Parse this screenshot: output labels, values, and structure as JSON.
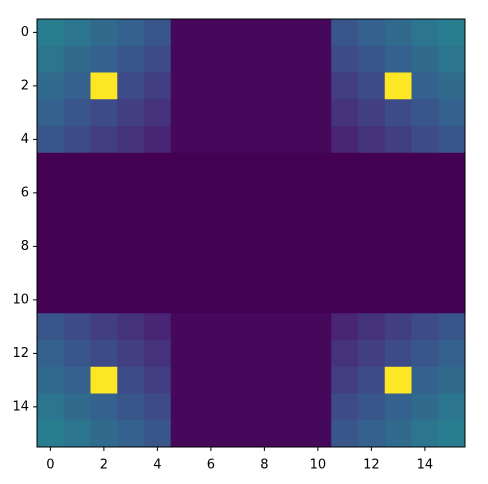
{
  "chart_data": {
    "type": "heatmap",
    "colormap": "viridis",
    "values": [
      [
        0.44,
        0.4,
        0.36,
        0.32,
        0.28,
        0.04,
        0.04,
        0.04,
        0.04,
        0.04,
        0.04,
        0.28,
        0.32,
        0.36,
        0.4,
        0.44
      ],
      [
        0.4,
        0.36,
        0.32,
        0.28,
        0.24,
        0.04,
        0.04,
        0.04,
        0.04,
        0.04,
        0.04,
        0.24,
        0.28,
        0.32,
        0.36,
        0.4
      ],
      [
        0.36,
        0.32,
        1,
        0.24,
        0.2,
        0.04,
        0.04,
        0.04,
        0.04,
        0.04,
        0.04,
        0.2,
        0.24,
        1,
        0.32,
        0.36
      ],
      [
        0.32,
        0.28,
        0.24,
        0.2,
        0.16,
        0.04,
        0.04,
        0.04,
        0.04,
        0.04,
        0.04,
        0.16,
        0.2,
        0.24,
        0.28,
        0.32
      ],
      [
        0.28,
        0.24,
        0.2,
        0.16,
        0.12,
        0.04,
        0.04,
        0.04,
        0.04,
        0.04,
        0.04,
        0.12,
        0.16,
        0.2,
        0.24,
        0.28
      ],
      [
        0.02,
        0.02,
        0.02,
        0.02,
        0.02,
        0.02,
        0.02,
        0.02,
        0.02,
        0.02,
        0.02,
        0.02,
        0.02,
        0.02,
        0.02,
        0.02
      ],
      [
        0.02,
        0.02,
        0.02,
        0.02,
        0.02,
        0.02,
        0.02,
        0.02,
        0.02,
        0.02,
        0.02,
        0.02,
        0.02,
        0.02,
        0.02,
        0.02
      ],
      [
        0.02,
        0.02,
        0.02,
        0.02,
        0.02,
        0.02,
        0.02,
        0.02,
        0.02,
        0.02,
        0.02,
        0.02,
        0.02,
        0.02,
        0.02,
        0.02
      ],
      [
        0.02,
        0.02,
        0.02,
        0.02,
        0.02,
        0.02,
        0.02,
        0.02,
        0.02,
        0.02,
        0.02,
        0.02,
        0.02,
        0.02,
        0.02,
        0.02
      ],
      [
        0.02,
        0.02,
        0.02,
        0.02,
        0.02,
        0.02,
        0.02,
        0.02,
        0.02,
        0.02,
        0.02,
        0.02,
        0.02,
        0.02,
        0.02,
        0.02
      ],
      [
        0.02,
        0.02,
        0.02,
        0.02,
        0.02,
        0.02,
        0.02,
        0.02,
        0.02,
        0.02,
        0.02,
        0.02,
        0.02,
        0.02,
        0.02,
        0.02
      ],
      [
        0.28,
        0.24,
        0.2,
        0.16,
        0.12,
        0.04,
        0.04,
        0.04,
        0.04,
        0.04,
        0.04,
        0.12,
        0.16,
        0.2,
        0.24,
        0.28
      ],
      [
        0.32,
        0.28,
        0.24,
        0.2,
        0.16,
        0.04,
        0.04,
        0.04,
        0.04,
        0.04,
        0.04,
        0.16,
        0.2,
        0.24,
        0.28,
        0.32
      ],
      [
        0.36,
        0.32,
        1,
        0.24,
        0.2,
        0.04,
        0.04,
        0.04,
        0.04,
        0.04,
        0.04,
        0.2,
        0.24,
        1,
        0.32,
        0.36
      ],
      [
        0.4,
        0.36,
        0.32,
        0.28,
        0.24,
        0.04,
        0.04,
        0.04,
        0.04,
        0.04,
        0.04,
        0.24,
        0.28,
        0.32,
        0.36,
        0.4
      ],
      [
        0.44,
        0.4,
        0.36,
        0.32,
        0.28,
        0.04,
        0.04,
        0.04,
        0.04,
        0.04,
        0.04,
        0.28,
        0.32,
        0.36,
        0.4,
        0.44
      ]
    ],
    "xlim": [
      -0.5,
      15.5
    ],
    "ylim": [
      15.5,
      -0.5
    ],
    "xticks": [
      0,
      2,
      4,
      6,
      8,
      10,
      12,
      14
    ],
    "yticks": [
      0,
      2,
      4,
      6,
      8,
      10,
      12,
      14
    ]
  }
}
